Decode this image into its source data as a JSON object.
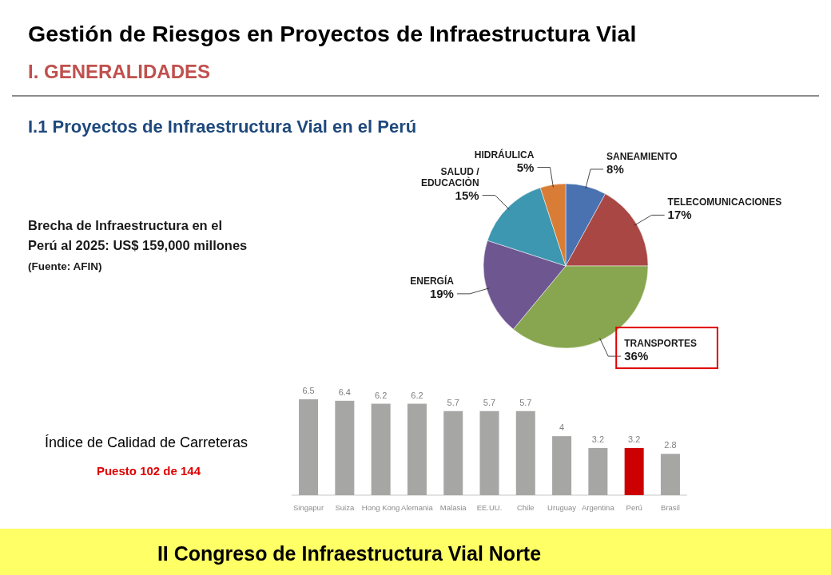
{
  "chart_data": [
    {
      "type": "pie",
      "title": "Gestión de Riesgos en Proyectos de Infraestructura Vial",
      "subtitle": "I. GENERALIDADES",
      "annotations": [
        "I.1 Proyectos de Infraestructura Vial en el Perú",
        "Brecha de Infraestructura en el Perú al 2025: US$ 159,000 millones",
        "(Fuente: AFIN)",
        "II Congreso de Infraestructura Vial Norte"
      ],
      "categories": [
        "SANEAMIENTO",
        "TELECOMUNICACIONES",
        "TRANSPORTES",
        "ENERGÍA",
        "SALUD / EDUCACIÒN",
        "HIDRÁULICA"
      ],
      "values": [
        8,
        17,
        36,
        19,
        15,
        5
      ],
      "value_labels": [
        "8%",
        "17%",
        "36%",
        "19%",
        "15%",
        "5%"
      ],
      "colors": [
        "#4a72b0",
        "#a84744",
        "#88a64f",
        "#6e5690",
        "#3e97b0",
        "#d97c35"
      ]
    },
    {
      "type": "bar",
      "title": "Índice de Calidad de Carreteras",
      "annotations": [
        "Puesto 102 de 144"
      ],
      "categories": [
        "Singapur",
        "Suiza",
        "Hong Kong",
        "Alemania",
        "Malasia",
        "EE.UU.",
        "Chile",
        "Uruguay",
        "Argentina",
        "Perú",
        "Brasil"
      ],
      "values": [
        6.5,
        6.4,
        6.2,
        6.2,
        5.7,
        5.7,
        5.7,
        4,
        3.2,
        3.2,
        2.8
      ],
      "colors": [
        "#a6a6a4",
        "#a6a6a4",
        "#a6a6a4",
        "#a6a6a4",
        "#a6a6a4",
        "#a6a6a4",
        "#a6a6a4",
        "#a6a6a4",
        "#a6a6a4",
        "#cc0000",
        "#a6a6a4"
      ],
      "data_labels": true,
      "tick_labels": "x"
    }
  ]
}
